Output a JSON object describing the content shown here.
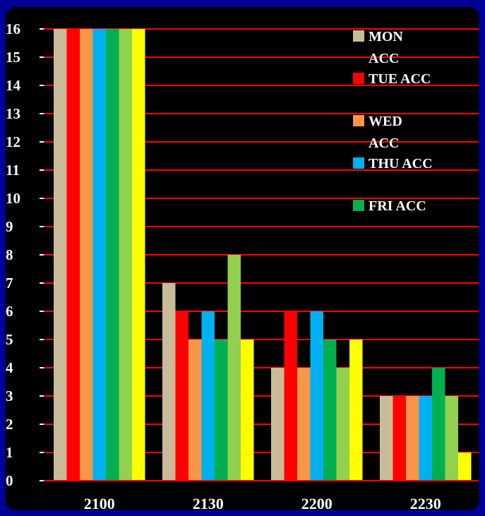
{
  "chart_data": {
    "type": "bar",
    "categories": [
      "2100",
      "2130",
      "2200",
      "2230"
    ],
    "series": [
      {
        "name": "MON ACC",
        "color": "#c8bc98",
        "values": [
          16,
          7,
          4,
          3
        ]
      },
      {
        "name": "TUE ACC",
        "color": "#ff0000",
        "values": [
          16,
          6,
          6,
          3
        ]
      },
      {
        "name": "WED ACC",
        "color": "#f79646",
        "values": [
          16,
          5,
          4,
          3
        ]
      },
      {
        "name": "THU ACC",
        "color": "#00b0f0",
        "values": [
          16,
          6,
          6,
          3
        ]
      },
      {
        "name": "FRI ACC",
        "color": "#00b050",
        "values": [
          16,
          5,
          5,
          4
        ]
      },
      {
        "name": "",
        "color": "#92d050",
        "values": [
          16,
          8,
          4,
          3
        ]
      },
      {
        "name": "",
        "color": "#ffff00",
        "values": [
          16,
          5,
          5,
          1
        ]
      }
    ],
    "ylim": [
      0,
      16
    ],
    "yticks": [
      0,
      1,
      2,
      3,
      4,
      5,
      6,
      7,
      8,
      9,
      10,
      11,
      12,
      13,
      14,
      15,
      16
    ],
    "grid": true,
    "grid_color": "#ff0000",
    "plot_background": "#000000",
    "page_background": "#000099",
    "legend_position": "top-right",
    "legend": [
      {
        "lines": [
          "MON",
          "ACC"
        ],
        "color": "#c8bc98"
      },
      {
        "lines": [
          "TUE ACC"
        ],
        "color": "#ff0000"
      },
      {
        "lines": [
          "WED",
          "ACC"
        ],
        "color": "#f79646"
      },
      {
        "lines": [
          "THU ACC"
        ],
        "color": "#00b0f0"
      },
      {
        "lines": [
          "FRI ACC"
        ],
        "color": "#00b050"
      }
    ]
  }
}
